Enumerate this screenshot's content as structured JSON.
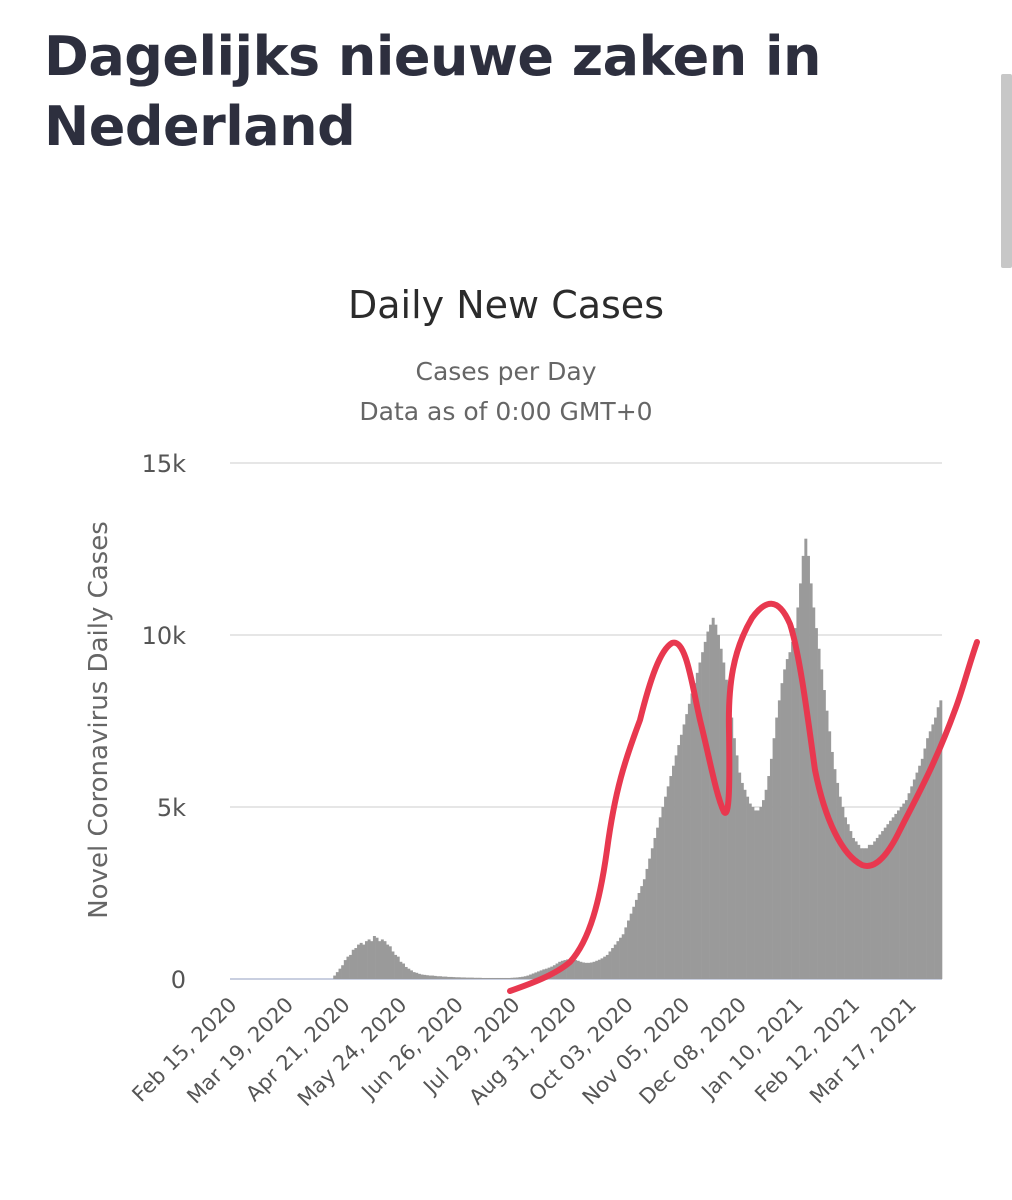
{
  "page": {
    "heading": "Dagelijks nieuwe zaken in Nederland"
  },
  "colors": {
    "heading": "#2d2f3e",
    "bars": "#9a9a9a",
    "grid": "#e6e6e6",
    "baseline": "#c9cfe0",
    "annotation_stroke": "#e8384f"
  },
  "chart_data": {
    "type": "bar",
    "title": "Daily New Cases",
    "subtitle": "Cases per Day",
    "subtitle2": "Data as of 0:00 GMT+0",
    "ylabel": "Novel Coronavirus Daily Cases",
    "xlabel": "",
    "ylim": [
      0,
      15000
    ],
    "yticks": [
      {
        "value": 0,
        "label": "0"
      },
      {
        "value": 5000,
        "label": "5k"
      },
      {
        "value": 10000,
        "label": "10k"
      },
      {
        "value": 15000,
        "label": "15k"
      }
    ],
    "xticks": [
      "Feb 15, 2020",
      "Mar 19, 2020",
      "Apr 21, 2020",
      "May 24, 2020",
      "Jun 26, 2020",
      "Jul 29, 2020",
      "Aug 31, 2020",
      "Oct 03, 2020",
      "Nov 05, 2020",
      "Dec 08, 2020",
      "Jan 10, 2021",
      "Feb 12, 2021",
      "Mar 17, 2021"
    ],
    "x_start": "2020-02-15",
    "x_end": "2021-04-05",
    "grid": true,
    "legend": "none",
    "series": [
      {
        "values": [
          0,
          0,
          0,
          0,
          0,
          0,
          0,
          0,
          0,
          0,
          0,
          0,
          0,
          0,
          0,
          0,
          0,
          0,
          0,
          0,
          0,
          0,
          0,
          0,
          0,
          0,
          0,
          0,
          0,
          0,
          0,
          0,
          0,
          0,
          0,
          0,
          0,
          0,
          0,
          100,
          200,
          300,
          400,
          550,
          650,
          700,
          850,
          900,
          1000,
          1050,
          1000,
          1100,
          1150,
          1100,
          1250,
          1200,
          1100,
          1150,
          1100,
          1000,
          950,
          800,
          700,
          650,
          500,
          450,
          350,
          300,
          250,
          200,
          180,
          150,
          130,
          120,
          110,
          100,
          100,
          90,
          80,
          80,
          70,
          70,
          60,
          60,
          55,
          50,
          50,
          45,
          45,
          40,
          40,
          40,
          35,
          35,
          35,
          30,
          30,
          30,
          30,
          30,
          30,
          30,
          30,
          30,
          30,
          30,
          35,
          40,
          45,
          55,
          65,
          80,
          100,
          130,
          160,
          190,
          220,
          250,
          280,
          300,
          330,
          360,
          400,
          450,
          500,
          530,
          550,
          570,
          580,
          570,
          550,
          530,
          500,
          480,
          470,
          470,
          480,
          500,
          530,
          560,
          600,
          650,
          700,
          800,
          900,
          1000,
          1100,
          1200,
          1300,
          1500,
          1700,
          1900,
          2100,
          2300,
          2500,
          2700,
          2900,
          3200,
          3500,
          3800,
          4100,
          4400,
          4700,
          5000,
          5300,
          5600,
          5900,
          6200,
          6500,
          6800,
          7100,
          7400,
          7700,
          8000,
          8300,
          8600,
          8900,
          9200,
          9500,
          9800,
          10100,
          10300,
          10500,
          10300,
          10000,
          9600,
          9200,
          8700,
          8200,
          7600,
          7000,
          6500,
          6000,
          5700,
          5500,
          5300,
          5100,
          5000,
          4900,
          4900,
          5000,
          5200,
          5500,
          5900,
          6400,
          7000,
          7600,
          8100,
          8600,
          9000,
          9300,
          9500,
          9800,
          10200,
          10800,
          11500,
          12300,
          12800,
          12300,
          11500,
          10800,
          10200,
          9600,
          9000,
          8400,
          7800,
          7200,
          6600,
          6100,
          5700,
          5300,
          5000,
          4700,
          4500,
          4300,
          4100,
          4000,
          3900,
          3800,
          3800,
          3800,
          3900,
          3900,
          4000,
          4100,
          4200,
          4300,
          4400,
          4500,
          4600,
          4700,
          4800,
          4900,
          5000,
          5100,
          5200,
          5400,
          5600,
          5800,
          6000,
          6200,
          6400,
          6700,
          7000,
          7200,
          7400,
          7600,
          7900,
          8100
        ]
      }
    ]
  },
  "annotation": {
    "type": "hand-drawn-curve"
  }
}
